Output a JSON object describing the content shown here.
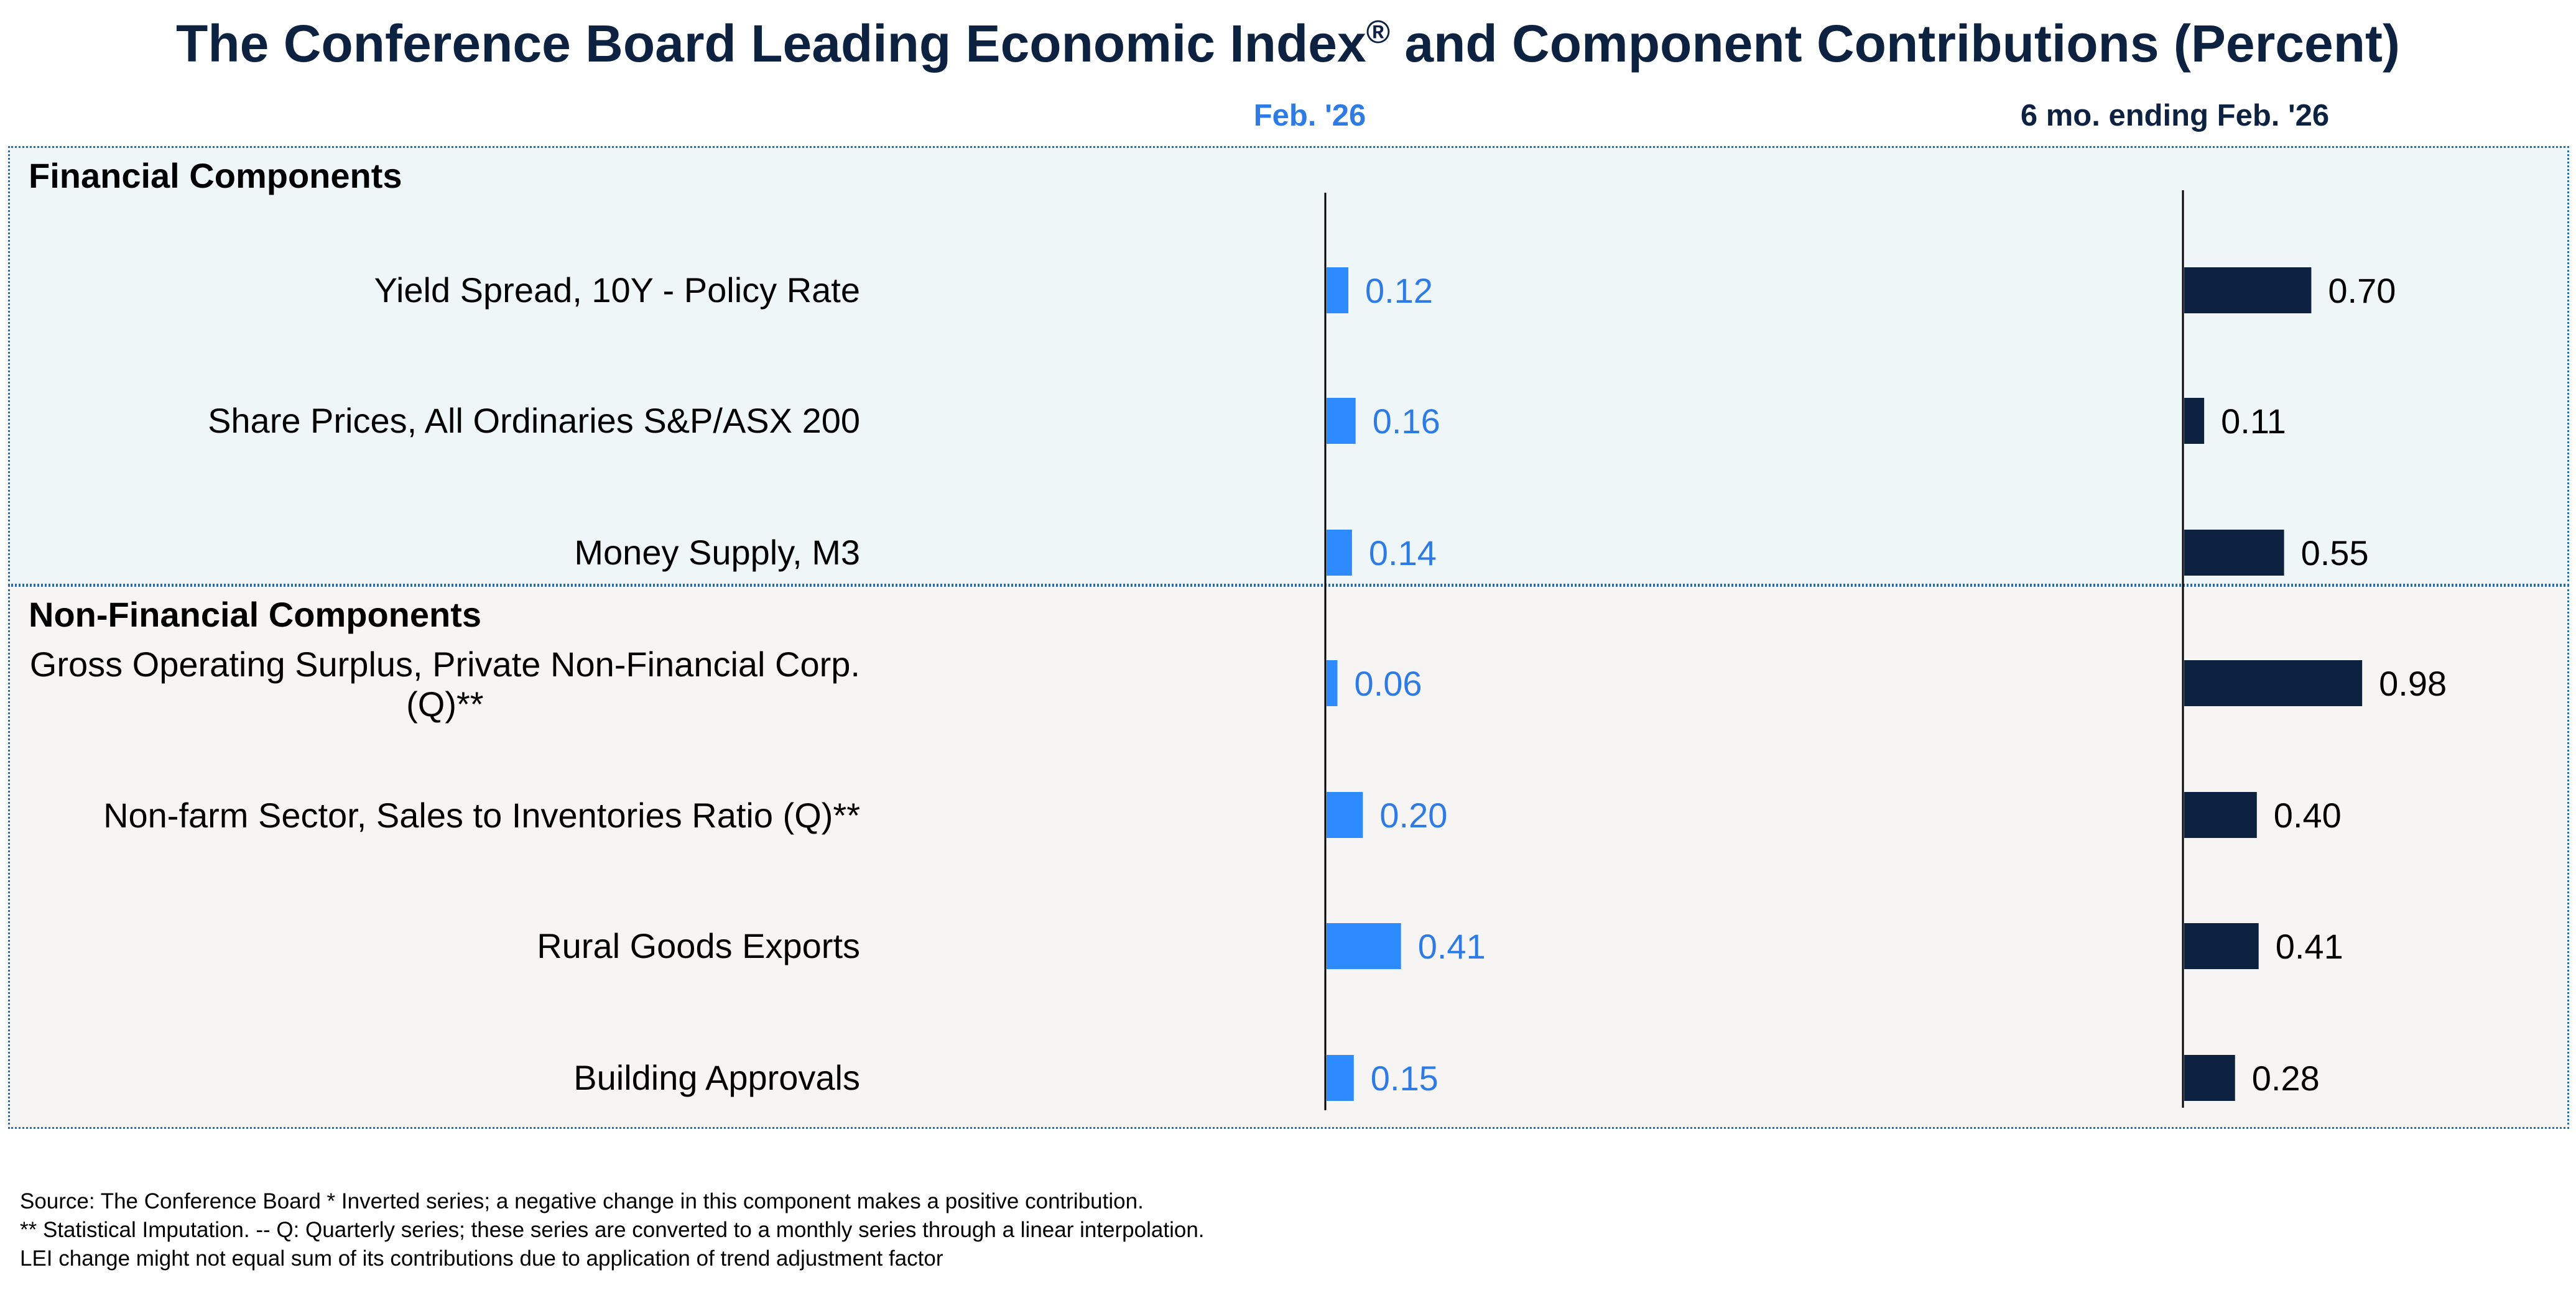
{
  "title": "The Conference Board Leading Economic Index",
  "title_mark": "®",
  "title_suffix": "and Component Contributions (Percent)",
  "columns": {
    "month": "Feb. '26",
    "six_month": "6 mo. ending Feb. '26"
  },
  "sections": {
    "financial": "Financial Components",
    "non_financial": "Non-Financial Components"
  },
  "footer": [
    "Source: The Conference Board *  Inverted series; a negative change in this component makes a positive contribution.",
    "**  Statistical Imputation. -- Q: Quarterly series; these series are converted to a monthly series through a linear interpolation.",
    "LEI change might not equal sum of its contributions due to application of trend adjustment factor"
  ],
  "colors": {
    "month_bar": "#2e8bff",
    "month_text": "#2e7be6",
    "six_month_bar": "#0d2240",
    "six_month_text": "#000000",
    "title": "#0d2240"
  },
  "chart_data": {
    "type": "bar",
    "orientation": "horizontal",
    "title": "The Conference Board Leading Economic Index® and Component Contributions (Percent)",
    "categories": [
      "Yield Spread, 10Y - Policy Rate",
      "Share Prices, All Ordinaries S&P/ASX 200",
      "Money Supply, M3",
      "Gross Operating Surplus, Private Non-Financial Corp. (Q)**",
      "Non-farm Sector, Sales to Inventories Ratio (Q)**",
      "Rural Goods Exports",
      "Building Approvals"
    ],
    "category_groups": [
      "Financial Components",
      "Financial Components",
      "Financial Components",
      "Non-Financial Components",
      "Non-Financial Components",
      "Non-Financial Components",
      "Non-Financial Components"
    ],
    "series": [
      {
        "name": "Feb. '26",
        "values": [
          0.12,
          0.16,
          0.14,
          0.06,
          0.2,
          0.41,
          0.15
        ],
        "labels": [
          "0.12",
          "0.16",
          "0.14",
          "0.06",
          "0.20",
          "0.41",
          "0.15"
        ]
      },
      {
        "name": "6 mo. ending Feb. '26",
        "values": [
          0.7,
          0.11,
          0.55,
          0.98,
          0.4,
          0.41,
          0.28
        ],
        "labels": [
          "0.70",
          "0.11",
          "0.55",
          "0.98",
          "0.40",
          "0.41",
          "0.28"
        ]
      }
    ],
    "grid": false,
    "legend": "none"
  }
}
